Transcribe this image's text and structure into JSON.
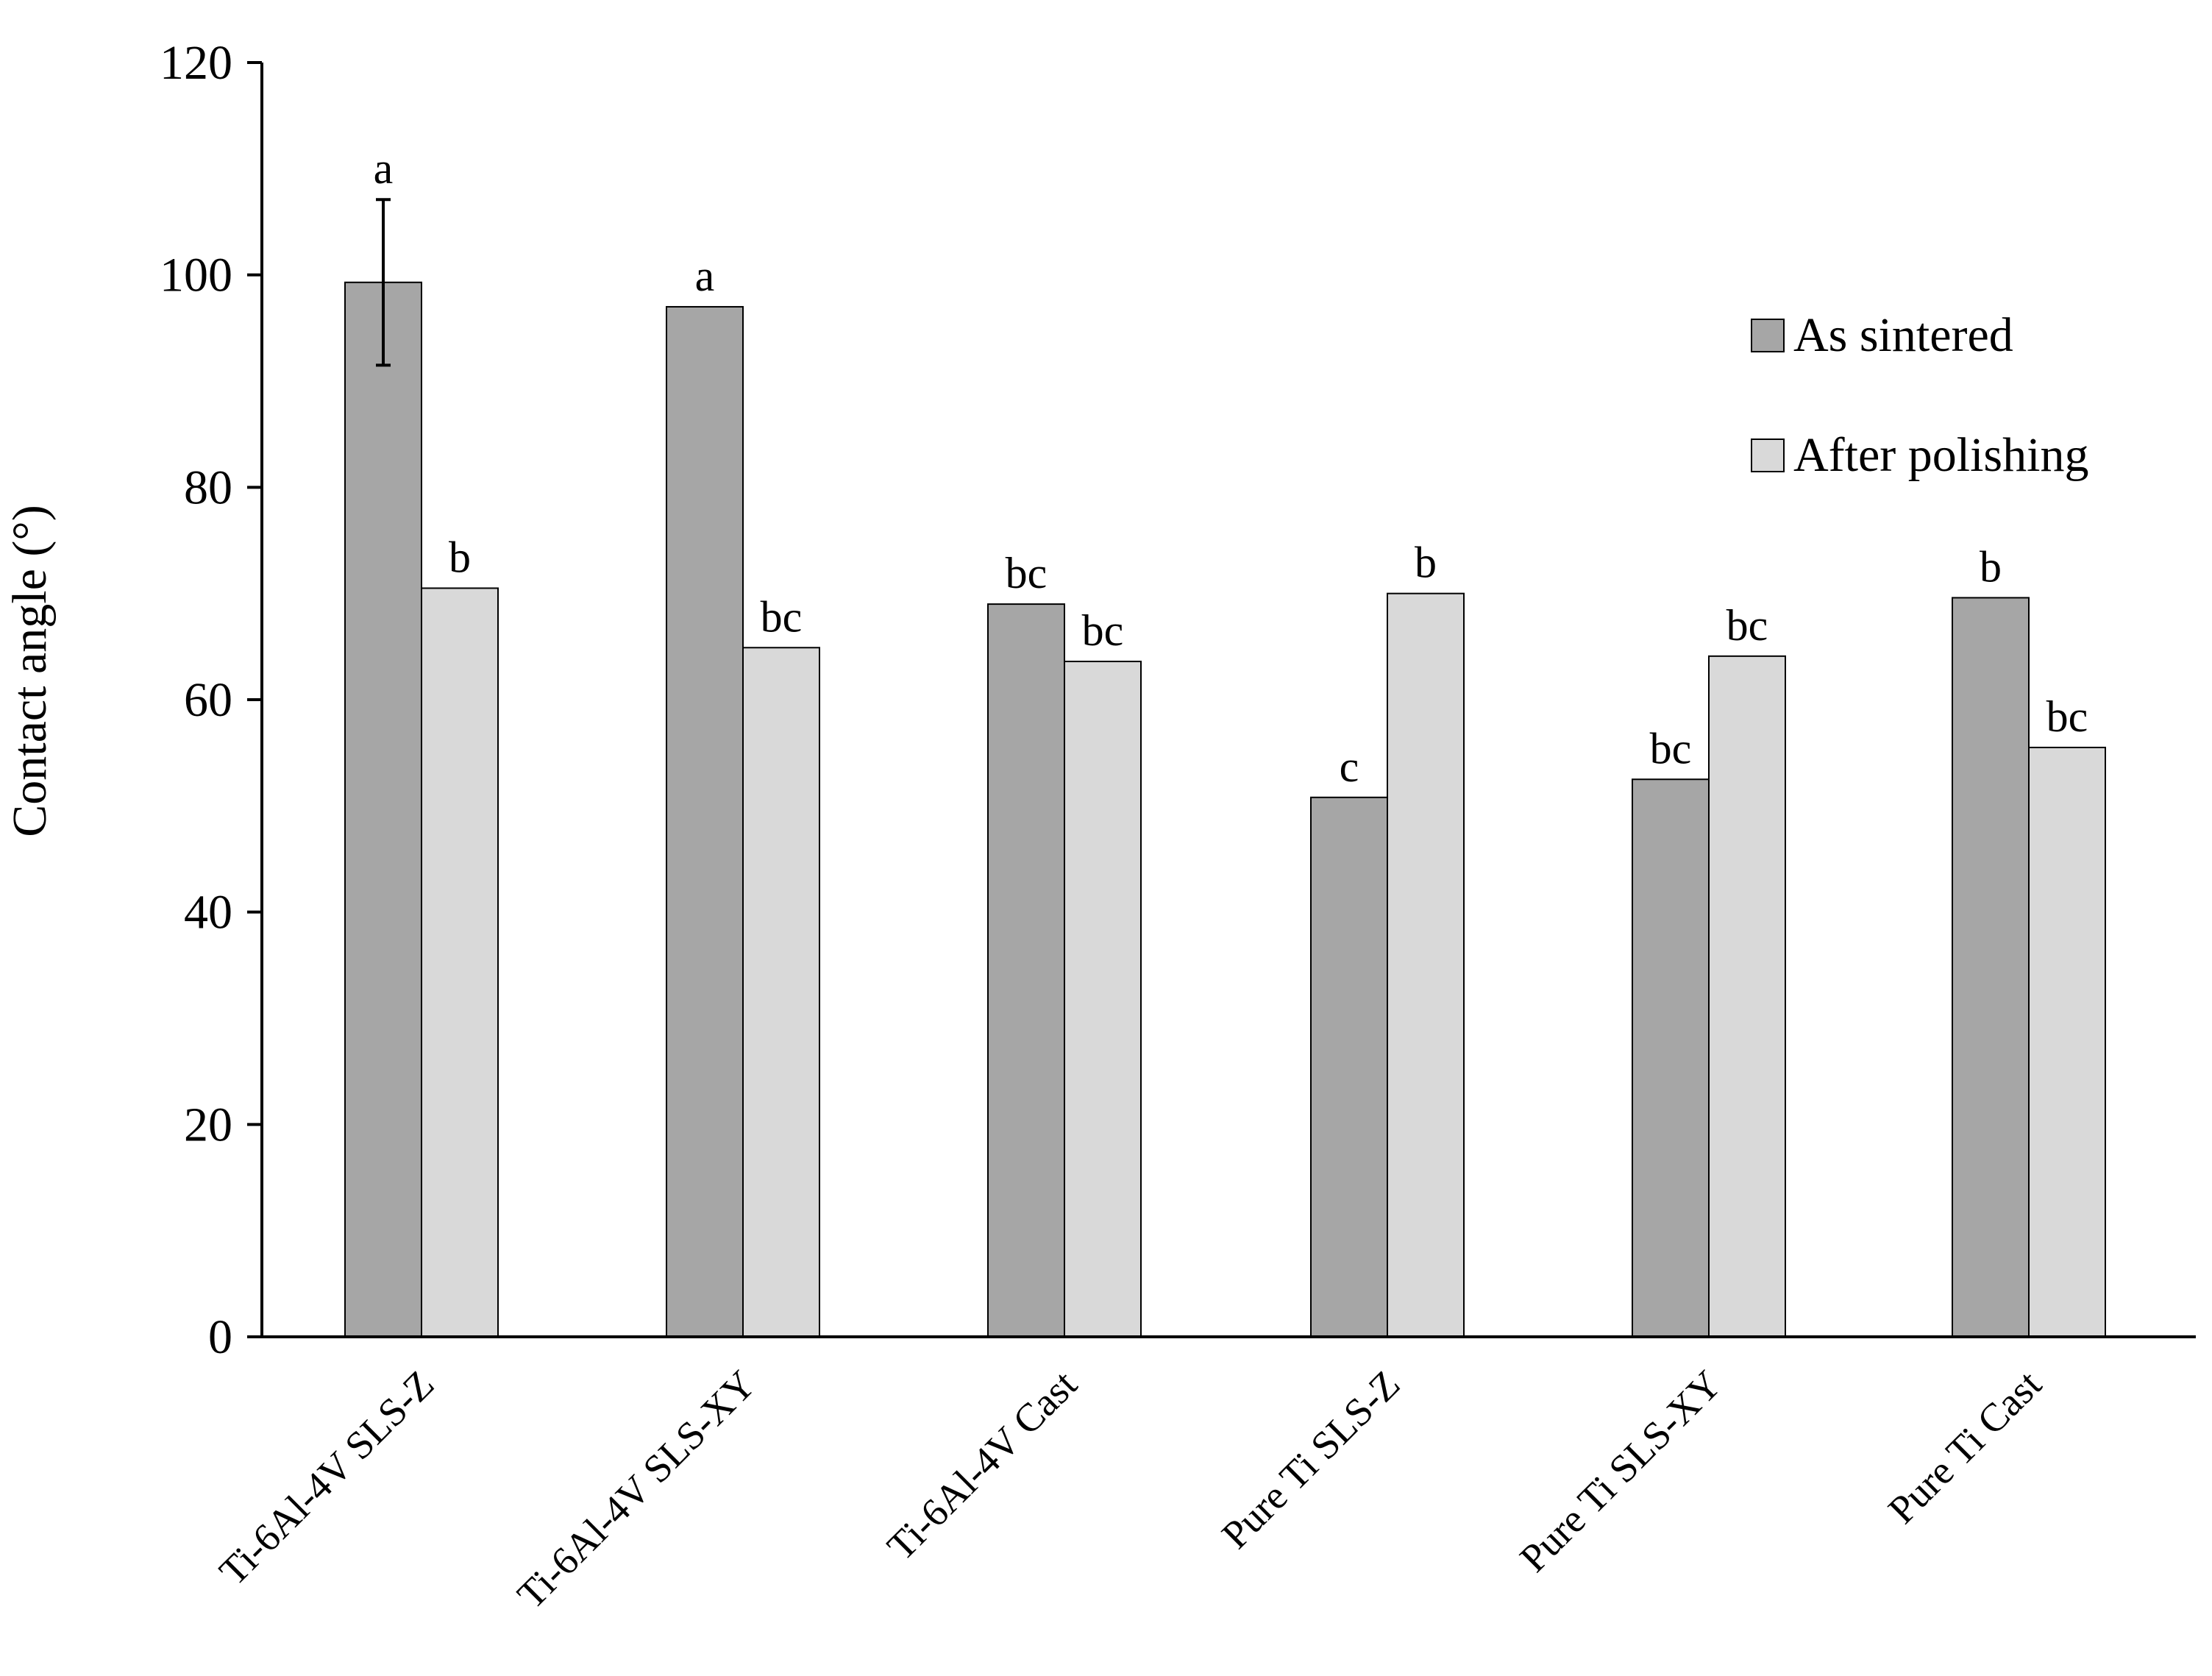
{
  "chart_data": {
    "type": "bar",
    "title": "",
    "xlabel": "",
    "ylabel": "Contact angle (°)",
    "ylim": [
      0,
      120
    ],
    "yticks": [
      "0",
      "20",
      "40",
      "60",
      "80",
      "100",
      "120"
    ],
    "grid": false,
    "legend_position": "right",
    "categories": [
      "Ti-6Al-4V SLS-Z",
      "Ti-6Al-4V SLS-XY",
      "Ti-6Al-4V Cast",
      "Pure Ti SLS-Z",
      "Pure Ti SLS-XY",
      "Pure Ti Cast"
    ],
    "series": [
      {
        "name": "As sintered",
        "color": "#a6a6a6",
        "values": [
          99.3,
          97.0,
          69.0,
          50.8,
          52.5,
          69.6
        ],
        "sig_letters": [
          "a",
          "a",
          "bc",
          "c",
          "bc",
          "b"
        ],
        "errors": [
          7.8,
          null,
          null,
          null,
          null,
          null
        ]
      },
      {
        "name": "After polishing",
        "color": "#d9d9d9",
        "values": [
          70.5,
          64.9,
          63.6,
          70.0,
          64.1,
          55.5
        ],
        "sig_letters": [
          "b",
          "bc",
          "bc",
          "b",
          "bc",
          "bc"
        ],
        "errors": [
          null,
          null,
          null,
          null,
          null,
          null
        ]
      }
    ]
  }
}
